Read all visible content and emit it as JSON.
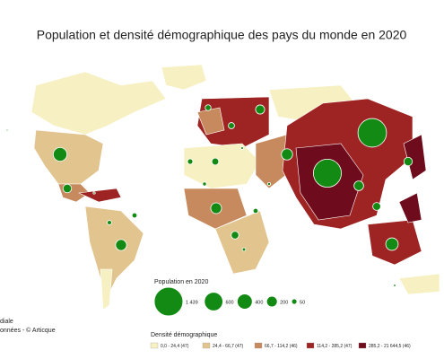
{
  "title": "Population et densité démographique des pays du monde en 2020",
  "population_legend": {
    "title": "Population en 2020",
    "items": [
      {
        "value": 1439,
        "label": "1 439"
      },
      {
        "value": 600,
        "label": "600"
      },
      {
        "value": 400,
        "label": "400"
      },
      {
        "value": 200,
        "label": "200"
      },
      {
        "value": 50,
        "label": "50"
      }
    ],
    "color": "#138a13"
  },
  "map_bubbles": [
    1439,
    1380,
    331,
    274,
    213,
    206,
    221,
    146,
    126,
    165,
    128,
    110,
    102,
    84,
    67,
    60,
    50,
    45,
    44,
    33,
    25,
    20,
    15,
    12,
    10,
    8,
    5
  ],
  "density_legend": {
    "title": "Densité démographique",
    "classes": [
      {
        "label": "0,0 - 24,4 (47)",
        "color": "#f6f0c2"
      },
      {
        "label": "24,4 - 66,7 (47)",
        "color": "#e2c48f"
      },
      {
        "label": "66,7 - 114,2 (46)",
        "color": "#c78a5e"
      },
      {
        "label": "114,2 - 285,2 (47)",
        "color": "#9e2424"
      },
      {
        "label": "285,2 - 21 644,5 (46)",
        "color": "#6e0b1c"
      }
    ]
  },
  "source": [
    "diale",
    "onnées - © Articque"
  ]
}
